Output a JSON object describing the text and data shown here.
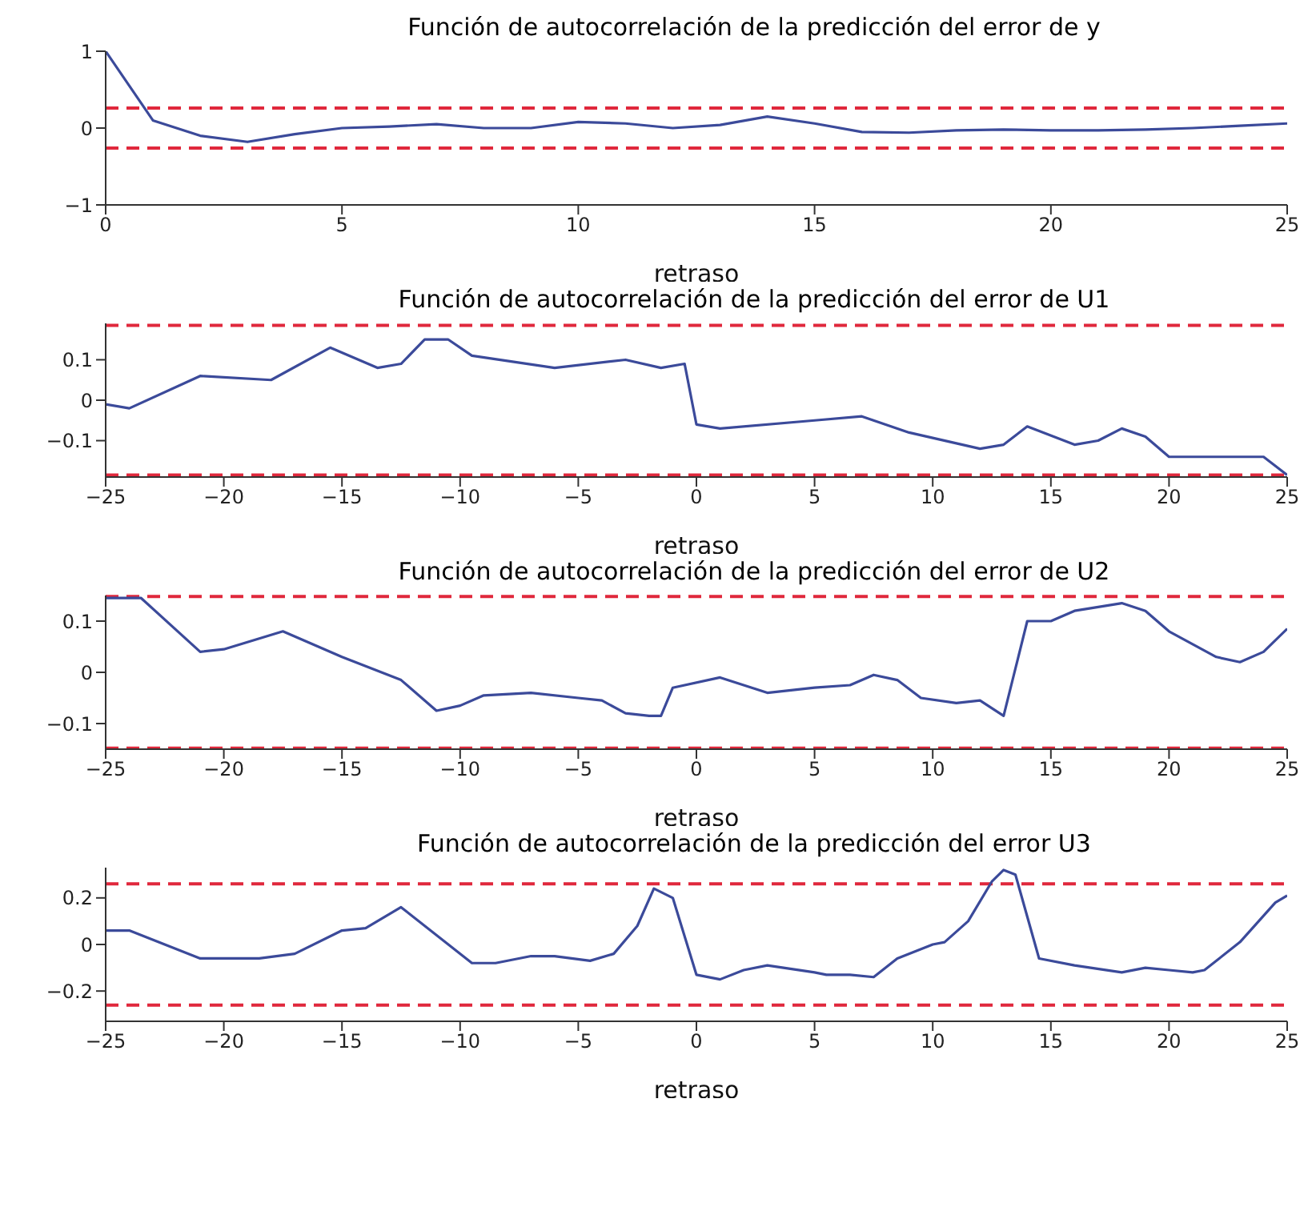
{
  "chart_data": [
    {
      "type": "line",
      "title": "Función de autocorrelación de la predicción del error de y",
      "xlabel": "retraso",
      "xlim": [
        0,
        25
      ],
      "xticks": [
        0,
        5,
        10,
        15,
        20,
        25
      ],
      "ylim": [
        -1,
        1
      ],
      "yticks": [
        -1,
        0,
        1
      ],
      "grid": false,
      "legend": false,
      "marker": "none",
      "line_style": "solid",
      "series": [
        {
          "color": "#3b4a9a",
          "x": [
            0,
            1,
            2,
            3,
            4,
            5,
            6,
            7,
            8,
            9,
            10,
            11,
            12,
            13,
            14,
            15,
            16,
            17,
            18,
            19,
            20,
            21,
            22,
            23,
            24,
            25
          ],
          "values": [
            1,
            0.1,
            -0.1,
            -0.18,
            -0.08,
            0,
            0.02,
            0.05,
            0,
            0,
            0.08,
            0.06,
            0,
            0.04,
            0.15,
            0.06,
            -0.05,
            -0.06,
            -0.03,
            -0.02,
            -0.03,
            -0.03,
            -0.02,
            0,
            0.03,
            0.06
          ]
        }
      ],
      "ref_lines": [
        {
          "axis": "y",
          "value": 0.26,
          "color": "#e0283c",
          "line_style": "dashed"
        },
        {
          "axis": "y",
          "value": -0.26,
          "color": "#e0283c",
          "line_style": "dashed"
        }
      ]
    },
    {
      "type": "line",
      "title": "Función de autocorrelación de la predicción del error de U1",
      "xlabel": "retraso",
      "xlim": [
        -25,
        25
      ],
      "xticks": [
        -25,
        -20,
        -15,
        -10,
        -5,
        0,
        5,
        10,
        15,
        20,
        25
      ],
      "ylim": [
        -0.19,
        0.19
      ],
      "yticks": [
        -0.1,
        0,
        0.1
      ],
      "grid": false,
      "legend": false,
      "marker": "none",
      "line_style": "solid",
      "series": [
        {
          "color": "#3b4a9a",
          "x": [
            -25,
            -24,
            -21,
            -18,
            -15.5,
            -13.5,
            -12.5,
            -11.5,
            -10.5,
            -9.5,
            -6,
            -3,
            -1.5,
            -0.5,
            0,
            1,
            5,
            7,
            9,
            12,
            13,
            14,
            16,
            17,
            18,
            19,
            20,
            24,
            25
          ],
          "values": [
            -0.01,
            -0.02,
            0.06,
            0.05,
            0.13,
            0.08,
            0.09,
            0.15,
            0.15,
            0.11,
            0.08,
            0.1,
            0.08,
            0.09,
            -0.06,
            -0.07,
            -0.05,
            -0.04,
            -0.08,
            -0.12,
            -0.11,
            -0.065,
            -0.11,
            -0.1,
            -0.07,
            -0.09,
            -0.14,
            -0.14,
            -0.185
          ]
        }
      ],
      "ref_lines": [
        {
          "axis": "y",
          "value": 0.185,
          "color": "#e0283c",
          "line_style": "dashed"
        },
        {
          "axis": "y",
          "value": -0.185,
          "color": "#e0283c",
          "line_style": "dashed"
        }
      ]
    },
    {
      "type": "line",
      "title": "Función de autocorrelación de la predicción del error de U2",
      "xlabel": "retraso",
      "xlim": [
        -25,
        25
      ],
      "xticks": [
        -25,
        -20,
        -15,
        -10,
        -5,
        0,
        5,
        10,
        15,
        20,
        25
      ],
      "ylim": [
        -0.15,
        0.15
      ],
      "yticks": [
        -0.1,
        0,
        0.1
      ],
      "grid": false,
      "legend": false,
      "marker": "none",
      "line_style": "solid",
      "series": [
        {
          "color": "#3b4a9a",
          "x": [
            -25,
            -23.5,
            -21,
            -20,
            -17.5,
            -15,
            -12.5,
            -11,
            -10,
            -9,
            -7,
            -5,
            -4,
            -3,
            -2,
            -1.5,
            -1,
            1,
            3,
            5,
            6.5,
            7.5,
            8.5,
            9.5,
            11,
            12,
            13,
            14,
            15,
            16,
            18,
            19,
            20,
            22,
            23,
            24,
            25
          ],
          "values": [
            0.145,
            0.145,
            0.04,
            0.045,
            0.08,
            0.03,
            -0.015,
            -0.075,
            -0.065,
            -0.045,
            -0.04,
            -0.05,
            -0.055,
            -0.08,
            -0.085,
            -0.085,
            -0.03,
            -0.01,
            -0.04,
            -0.03,
            -0.025,
            -0.005,
            -0.015,
            -0.05,
            -0.06,
            -0.055,
            -0.085,
            0.1,
            0.1,
            0.12,
            0.135,
            0.12,
            0.08,
            0.03,
            0.02,
            0.04,
            0.085
          ]
        }
      ],
      "ref_lines": [
        {
          "axis": "y",
          "value": 0.148,
          "color": "#e0283c",
          "line_style": "dashed"
        },
        {
          "axis": "y",
          "value": -0.148,
          "color": "#e0283c",
          "line_style": "dashed"
        }
      ]
    },
    {
      "type": "line",
      "title": "Función de autocorrelación de la predicción del error U3",
      "xlabel": "retraso",
      "xlim": [
        -25,
        25
      ],
      "xticks": [
        -25,
        -20,
        -15,
        -10,
        -5,
        0,
        5,
        10,
        15,
        20,
        25
      ],
      "ylim": [
        -0.33,
        0.33
      ],
      "yticks": [
        -0.2,
        0,
        0.2
      ],
      "grid": false,
      "legend": false,
      "marker": "none",
      "line_style": "solid",
      "series": [
        {
          "color": "#3b4a9a",
          "x": [
            -25,
            -24,
            -21,
            -18.5,
            -17,
            -15,
            -14,
            -12.5,
            -9.5,
            -8.5,
            -7,
            -6,
            -4.5,
            -3.5,
            -2.5,
            -1.8,
            -1,
            0,
            1,
            2,
            3,
            5,
            5.5,
            6.5,
            7.5,
            8.5,
            10,
            10.5,
            11.5,
            12.5,
            13,
            13.5,
            14.5,
            16,
            18,
            19,
            20,
            21,
            21.5,
            23,
            24.5,
            25
          ],
          "values": [
            0.06,
            0.06,
            -0.06,
            -0.06,
            -0.04,
            0.06,
            0.07,
            0.16,
            -0.08,
            -0.08,
            -0.05,
            -0.05,
            -0.07,
            -0.04,
            0.08,
            0.24,
            0.2,
            -0.13,
            -0.15,
            -0.11,
            -0.09,
            -0.12,
            -0.13,
            -0.13,
            -0.14,
            -0.06,
            0,
            0.01,
            0.1,
            0.27,
            0.32,
            0.3,
            -0.06,
            -0.09,
            -0.12,
            -0.1,
            -0.11,
            -0.12,
            -0.11,
            0.01,
            0.18,
            0.21
          ]
        }
      ],
      "ref_lines": [
        {
          "axis": "y",
          "value": 0.26,
          "color": "#e0283c",
          "line_style": "dashed"
        },
        {
          "axis": "y",
          "value": -0.26,
          "color": "#e0283c",
          "line_style": "dashed"
        }
      ]
    }
  ]
}
